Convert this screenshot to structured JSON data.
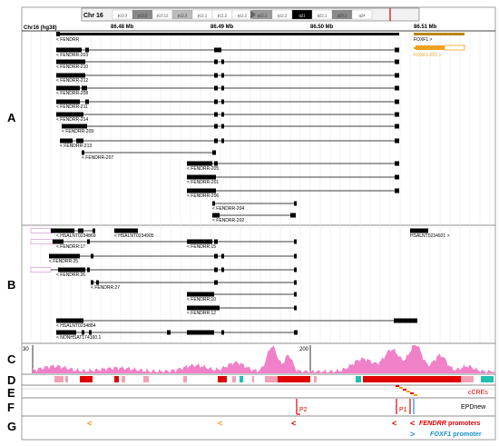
{
  "ideogram": {
    "chrom_label": "Chr 16",
    "bands": [
      "p13.3",
      "p13.2",
      "p13.12",
      "p12.3",
      "p12.1",
      "p11.2",
      "q11.2",
      "q12.1",
      "q12.2",
      "q21",
      "q22.1",
      "q23.1",
      "q24"
    ]
  },
  "ruler": {
    "assembly_label": "Chr16 (hg38)",
    "ticks": [
      "86.48 Mb",
      "86.49 Mb",
      "86.50 Mb",
      "86.51 Mb"
    ]
  },
  "panel_letters": [
    "A",
    "B",
    "C",
    "D",
    "E",
    "F",
    "G"
  ],
  "panelA": {
    "top_left_gene": "< FENDRR",
    "top_right_gene": "FOXF1 >",
    "foxf1_transcript": "FOXF1-201 >",
    "transcripts": [
      "< FENDRR-203",
      "< FENDRR-210",
      "< FENDRR-212",
      "< FENDRR-208",
      "< FENDRR-211",
      "< FENDRR-214",
      "< FENDRR-209",
      "< FENDRR-213",
      "< FENDRR-207",
      "< FENDRR-205",
      "< FENDRR-201",
      "< FENDRR-206",
      "< FENDRR-204",
      "< FENDRR-202"
    ]
  },
  "panelB": {
    "labels": [
      "< HSALNT0234869",
      "< HSALNT0234905",
      "HSALNT0234921 >",
      "< FENDRR:17",
      "< FENDRR:15",
      "< FENDRR:25",
      "< FENDRR:26",
      "< FENDRR:27",
      "< FENDRR:10",
      "< FENDRR:12",
      "< HSALNT0234884",
      "< NONHSAT174160.1"
    ]
  },
  "panelC": {
    "scale_min": "30",
    "scale_max": "200"
  },
  "legend": {
    "ccres": "cCREs",
    "epdnew": "EPDnew",
    "fendrr_italic": "FENDRR",
    "fendrr_rest": " promoters",
    "foxf1_italic": "FOXF1",
    "foxf1_rest": " promoter"
  },
  "promoter_labels": {
    "p1": "P1",
    "p2": "P2"
  },
  "colors": {
    "chrom_highlight": "#e00000",
    "gene_black": "#000000",
    "foxf1_gold": "#b8860b",
    "foxf1_orange": "#f0a020",
    "pink_signal": "#f080c8",
    "ccre_red": "#e00000",
    "ccre_orange": "#f5a000",
    "ccre_pink": "#f4a0b4",
    "ccre_teal": "#20c0b0",
    "epd_red": "#e00000",
    "fendrr_promoter": "#e00000",
    "foxf1_promoter": "#1f8fd0",
    "arrow_orange": "#ff8c1a"
  }
}
